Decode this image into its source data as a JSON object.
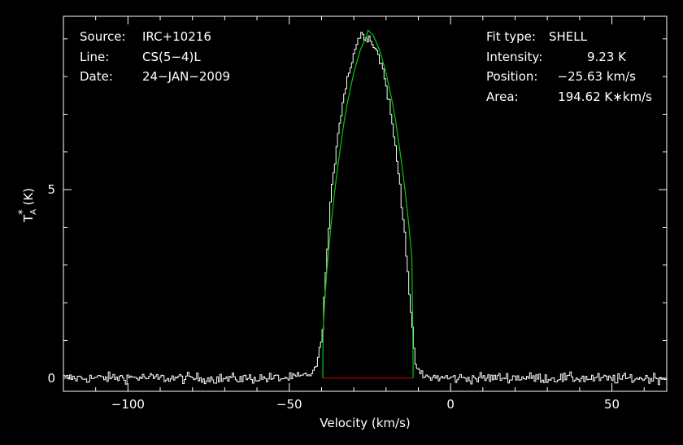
{
  "info_left": [
    {
      "key": "Source:",
      "value": "IRC+10216"
    },
    {
      "key": "Line:",
      "value": "CS(5−4)L"
    },
    {
      "key": "Date:",
      "value": "24−JAN−2009"
    }
  ],
  "info_right": [
    {
      "key": "Fit type:",
      "value": "SHELL"
    },
    {
      "key": "Intensity:",
      "value": "9.23 K"
    },
    {
      "key": "Position:",
      "value": "−25.63 km/s"
    },
    {
      "key": "Area:",
      "value": "194.62 K∗km/s"
    }
  ],
  "chart_data": {
    "type": "line",
    "xlabel": "Velocity (km/s)",
    "ylabel": "T",
    "ylabel_sup": "*",
    "ylabel_sub": "A",
    "ylabel_unit": "(K)",
    "xlim": [
      -120,
      67
    ],
    "ylim": [
      -0.35,
      9.6
    ],
    "x_ticks": [
      -100,
      -50,
      0,
      50
    ],
    "x_tick_labels": [
      "−100",
      "−50",
      "0",
      "50"
    ],
    "y_ticks": [
      0,
      5
    ],
    "y_tick_labels": [
      "0",
      "5"
    ],
    "grid": false,
    "colors": {
      "spectrum": "#ffffff",
      "fit": "#00cc00",
      "baseline": "#dd0000",
      "axes": "#ffffff"
    },
    "series": [
      {
        "x": [
          -120,
          -110,
          -100,
          -90,
          -80,
          -70,
          -60,
          -50,
          -45,
          -42,
          -40,
          -39,
          -38,
          -37,
          -36,
          -35,
          -34,
          -33,
          -32,
          -31,
          -30,
          -29,
          -28,
          -27,
          -26,
          -25,
          -24,
          -23,
          -22,
          -21,
          -20,
          -19,
          -18,
          -17,
          -16,
          -15,
          -14,
          -13,
          -12,
          -11,
          -10,
          -8,
          0,
          10,
          20,
          30,
          40,
          50,
          60,
          67
        ],
        "y": [
          0.0,
          0.0,
          0.02,
          0.0,
          0.0,
          -0.02,
          0.0,
          0.0,
          0.05,
          0.2,
          0.9,
          2.3,
          3.6,
          4.8,
          5.6,
          6.4,
          7.0,
          7.5,
          7.9,
          8.3,
          8.6,
          8.9,
          9.1,
          9.1,
          9.1,
          9.0,
          8.9,
          8.7,
          8.5,
          8.2,
          7.8,
          7.3,
          6.7,
          6.1,
          5.4,
          4.6,
          3.7,
          2.6,
          1.4,
          0.5,
          0.15,
          0.03,
          0.0,
          0.0,
          0.02,
          0.0,
          0.0,
          -0.02,
          0.0,
          0.0
        ]
      },
      {
        "x": [
          -39.6,
          -39.5,
          -39,
          -38,
          -37,
          -36,
          -35,
          -34,
          -33,
          -32,
          -30,
          -28,
          -26,
          -25.6,
          -24,
          -22,
          -20,
          -18,
          -17,
          -16,
          -15,
          -14,
          -13,
          -12,
          -11.7,
          -11.6
        ],
        "y": [
          0.0,
          1.2,
          2.1,
          3.2,
          4.1,
          4.9,
          5.6,
          6.2,
          6.8,
          7.3,
          8.1,
          8.7,
          9.1,
          9.23,
          9.1,
          8.7,
          8.1,
          7.3,
          6.8,
          6.2,
          5.6,
          4.9,
          4.1,
          3.2,
          1.2,
          0.0
        ]
      },
      {
        "x": [
          -39.6,
          -11.6
        ],
        "y": [
          0.0,
          0.0
        ]
      }
    ]
  }
}
